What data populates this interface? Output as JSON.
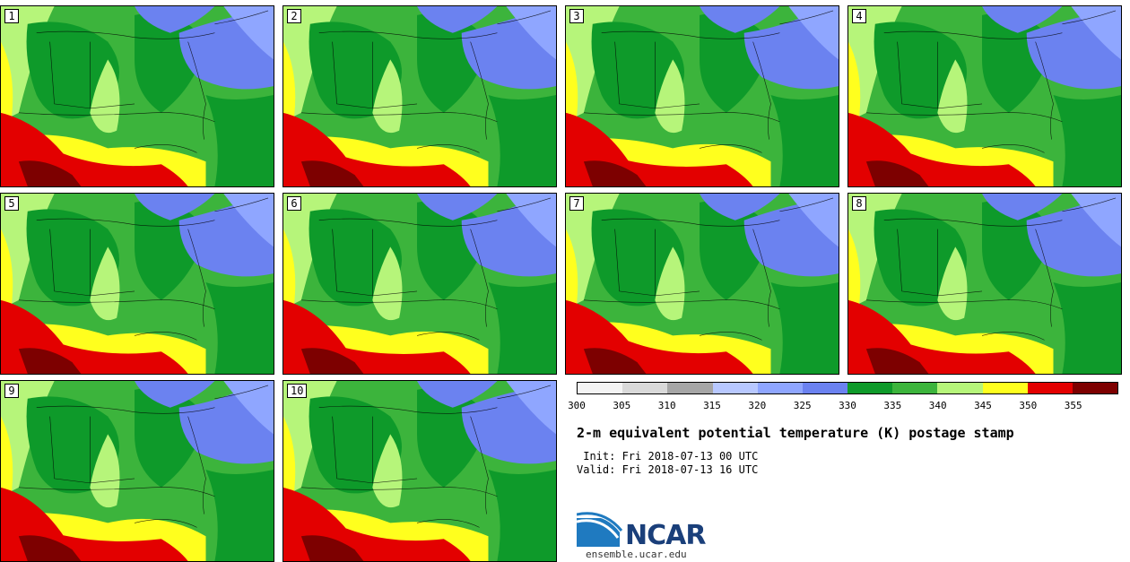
{
  "panels": [
    {
      "label": "1",
      "variant": 0
    },
    {
      "label": "2",
      "variant": 1
    },
    {
      "label": "3",
      "variant": 2
    },
    {
      "label": "4",
      "variant": 3
    },
    {
      "label": "5",
      "variant": 4
    },
    {
      "label": "6",
      "variant": 5
    },
    {
      "label": "7",
      "variant": 6
    },
    {
      "label": "8",
      "variant": 7
    },
    {
      "label": "9",
      "variant": 8
    },
    {
      "label": "10",
      "variant": 9
    }
  ],
  "colorbar": {
    "colors": [
      "#f4f4f4",
      "#d9d9d9",
      "#a6a6a6",
      "#b8c8ff",
      "#8fa6ff",
      "#6b82f0",
      "#0e9a2a",
      "#3cb43c",
      "#b6f57a",
      "#ffff1e",
      "#e30000",
      "#7d0000"
    ],
    "ticks": [
      "300",
      "305",
      "310",
      "315",
      "320",
      "325",
      "330",
      "335",
      "340",
      "345",
      "350",
      "355"
    ]
  },
  "title": "2-m equivalent potential temperature (K) postage stamp",
  "init": " Init: Fri 2018-07-13 00 UTC",
  "valid": "Valid: Fri 2018-07-13 16 UTC",
  "logo": {
    "text": "NCAR",
    "url": "ensemble.ucar.edu"
  }
}
